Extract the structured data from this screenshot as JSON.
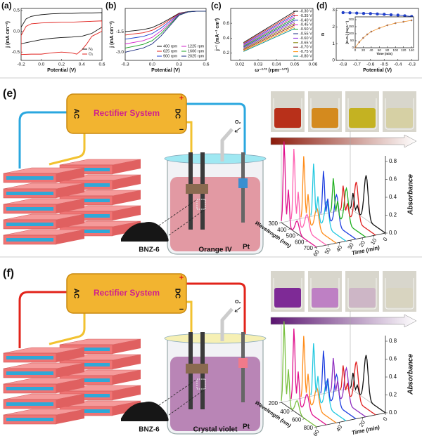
{
  "chart_data": [
    {
      "type": "line",
      "label": "(a)",
      "x_label": "Potential (V)",
      "y_label": "j (mA cm⁻²)",
      "xlim": [
        -0.2,
        0.6
      ],
      "ylim": [
        -0.7,
        0.55
      ],
      "xticks": [
        -0.2,
        {
          "value": 0,
          "label": "0.0"
        },
        0.2,
        0.4,
        0.6
      ],
      "yticks": [
        -0.5,
        {
          "value": 0,
          "label": "0.0"
        },
        0.5
      ],
      "series": [
        {
          "name": "N₂",
          "color": "#111111",
          "x": [
            -0.2,
            -0.15,
            -0.1,
            0,
            0.1,
            0.2,
            0.3,
            0.4,
            0.5,
            0.6,
            0.6,
            0.5,
            0.4,
            0.3,
            0.2,
            0.1,
            0,
            -0.1,
            -0.2,
            -0.2
          ],
          "values": [
            0.1,
            0.3,
            0.36,
            0.4,
            0.42,
            0.43,
            0.43,
            0.44,
            0.44,
            0.45,
            0.1,
            -0.05,
            -0.12,
            -0.14,
            -0.15,
            -0.17,
            -0.2,
            -0.25,
            -0.3,
            0.1
          ]
        },
        {
          "name": "O₂",
          "color": "#e0201c",
          "x": [
            -0.2,
            -0.15,
            -0.1,
            0,
            0.1,
            0.2,
            0.3,
            0.4,
            0.5,
            0.6,
            0.6,
            0.5,
            0.45,
            0.4,
            0.35,
            0.3,
            0.2,
            0.1,
            0,
            -0.1,
            -0.2,
            -0.2
          ],
          "values": [
            -0.1,
            0.12,
            0.18,
            0.2,
            0.21,
            0.22,
            0.22,
            0.23,
            0.24,
            0.25,
            0.0,
            -0.12,
            -0.3,
            -0.45,
            -0.55,
            -0.52,
            -0.5,
            -0.52,
            -0.55,
            -0.55,
            -0.56,
            -0.1
          ]
        }
      ]
    },
    {
      "type": "line",
      "label": "(b)",
      "x_label": "Potential (V)",
      "y_label": "j (mA cm⁻²)",
      "xlim": [
        -0.3,
        0.6
      ],
      "ylim": [
        -3.6,
        0.2
      ],
      "xticks": [
        -0.3,
        {
          "value": 0,
          "label": "0.0"
        },
        0.3,
        0.6
      ],
      "yticks": [
        {
          "value": -3,
          "label": "-3.0"
        },
        -1.5
      ],
      "series": [
        {
          "name": "400 rpm",
          "color": "#111111",
          "x": [
            -0.3,
            -0.2,
            -0.1,
            0,
            0.1,
            0.2,
            0.3,
            0.4,
            0.5,
            0.6
          ],
          "values": [
            -1.5,
            -1.43,
            -1.35,
            -1.2,
            -0.9,
            -0.53,
            -0.15,
            -0.03,
            0,
            0
          ]
        },
        {
          "name": "625 rpm",
          "color": "#e0201c",
          "x": [
            -0.3,
            -0.2,
            -0.1,
            0,
            0.1,
            0.2,
            0.3,
            0.4,
            0.5,
            0.6
          ],
          "values": [
            -1.75,
            -1.66,
            -1.58,
            -1.4,
            -1.05,
            -0.61,
            -0.18,
            -0.04,
            0,
            0
          ]
        },
        {
          "name": "900 rpm",
          "color": "#1f3fd0",
          "x": [
            -0.3,
            -0.2,
            -0.1,
            0,
            0.1,
            0.2,
            0.3,
            0.4,
            0.5,
            0.6
          ],
          "values": [
            -2.05,
            -1.95,
            -1.85,
            -1.64,
            -1.23,
            -0.72,
            -0.21,
            -0.04,
            0,
            0
          ]
        },
        {
          "name": "1225 rpm",
          "color": "#d020c8",
          "x": [
            -0.3,
            -0.2,
            -0.1,
            0,
            0.1,
            0.2,
            0.3,
            0.4,
            0.5,
            0.6
          ],
          "values": [
            -2.4,
            -2.28,
            -2.16,
            -1.92,
            -1.44,
            -0.84,
            -0.24,
            -0.05,
            0,
            0
          ]
        },
        {
          "name": "1600 rpm",
          "color": "#18a020",
          "x": [
            -0.3,
            -0.2,
            -0.1,
            0,
            0.1,
            0.2,
            0.3,
            0.4,
            0.5,
            0.6
          ],
          "values": [
            -2.7,
            -2.57,
            -2.43,
            -2.16,
            -1.62,
            -0.95,
            -0.27,
            -0.05,
            0,
            0
          ]
        },
        {
          "name": "2025 rpm",
          "color": "#1a2a80",
          "x": [
            -0.3,
            -0.2,
            -0.1,
            0,
            0.1,
            0.2,
            0.3,
            0.4,
            0.5,
            0.6
          ],
          "values": [
            -3,
            -2.85,
            -2.7,
            -2.4,
            -1.8,
            -1.05,
            -0.3,
            -0.06,
            0,
            0
          ]
        }
      ]
    },
    {
      "type": "line",
      "label": "(c)",
      "x_label": "ω⁻¹ᐟ² (rpm⁻¹ᐟ²)",
      "y_label": "j⁻¹ (mA⁻¹ cm²)",
      "xlim": [
        0.015,
        0.06
      ],
      "ylim": [
        0.1,
        0.8
      ],
      "xticks": [
        0.02,
        0.03,
        0.04,
        0.05,
        0.06
      ],
      "yticks": [
        0.2,
        0.4,
        0.6
      ],
      "series": [
        {
          "name": "-0.30 V",
          "color": "#111111",
          "x": [
            0.022,
            0.05
          ],
          "values": [
            0.34,
            0.76
          ]
        },
        {
          "name": "-0.35 V",
          "color": "#e0201c",
          "x": [
            0.022,
            0.05
          ],
          "values": [
            0.328,
            0.737
          ]
        },
        {
          "name": "-0.40 V",
          "color": "#1f3fd0",
          "x": [
            0.022,
            0.05
          ],
          "values": [
            0.316,
            0.714
          ]
        },
        {
          "name": "-0.45 V",
          "color": "#d020c8",
          "x": [
            0.022,
            0.05
          ],
          "values": [
            0.304,
            0.691
          ]
        },
        {
          "name": "-0.50 V",
          "color": "#18a020",
          "x": [
            0.022,
            0.05
          ],
          "values": [
            0.292,
            0.668
          ]
        },
        {
          "name": "-0.55 V",
          "color": "#1a2a80",
          "x": [
            0.022,
            0.05
          ],
          "values": [
            0.28,
            0.645
          ]
        },
        {
          "name": "-0.60 V",
          "color": "#8a2be2",
          "x": [
            0.022,
            0.05
          ],
          "values": [
            0.268,
            0.622
          ]
        },
        {
          "name": "-0.65 V",
          "color": "#808000",
          "x": [
            0.022,
            0.05
          ],
          "values": [
            0.256,
            0.599
          ]
        },
        {
          "name": "-0.70 V",
          "color": "#8b1a1a",
          "x": [
            0.022,
            0.05
          ],
          "values": [
            0.244,
            0.576
          ]
        },
        {
          "name": "-0.75 V",
          "color": "#ff8c00",
          "x": [
            0.022,
            0.05
          ],
          "values": [
            0.232,
            0.553
          ]
        },
        {
          "name": "-0.80 V",
          "color": "#008b8b",
          "x": [
            0.022,
            0.05
          ],
          "values": [
            0.22,
            0.53
          ]
        }
      ]
    },
    {
      "type": "line",
      "label": "(d)",
      "x_label": "Potential (V)",
      "y_label": "n",
      "markers": true,
      "xlim": [
        -0.85,
        -0.25
      ],
      "ylim": [
        0,
        3.1
      ],
      "xticks": [
        -0.8,
        -0.7,
        -0.6,
        -0.5,
        -0.4,
        -0.3
      ],
      "yticks": [
        0,
        1,
        2,
        3
      ],
      "series": [
        {
          "color": "#1f3fd0",
          "x": [
            -0.8,
            -0.75,
            -0.7,
            -0.65,
            -0.6,
            -0.55,
            -0.5,
            -0.45,
            -0.4,
            -0.35,
            -0.3
          ],
          "values": [
            2.85,
            2.84,
            2.82,
            2.8,
            2.79,
            2.77,
            2.75,
            2.72,
            2.7,
            2.66,
            2.62
          ]
        }
      ],
      "inset": {
        "type": "line",
        "x_label": "Time (min)",
        "y_label": "[H₂O₂] (mg L⁻¹)",
        "markers": true,
        "xlim": [
          0,
          145
        ],
        "ylim": [
          0,
          220
        ],
        "xticks": [
          0,
          20,
          40,
          60,
          80,
          100,
          120,
          140
        ],
        "yticks": [
          0,
          50,
          100,
          150,
          200
        ],
        "series": [
          {
            "color": "#f08a1c",
            "x": [
              0,
              10,
              20,
              30,
              40,
              60,
              80,
              100,
              120,
              140
            ],
            "values": [
              0,
              40,
              70,
              95,
              115,
              140,
              160,
              175,
              185,
              195
            ]
          }
        ]
      }
    }
  ],
  "panels": [
    {
      "label": "(e)",
      "rectifier": "Rectifier System",
      "ac": "AC",
      "dc": "DC",
      "plus": "+",
      "minus": "−",
      "gas": "O₂",
      "catalyst": "BNZ-6",
      "pollutant": "Orange IV",
      "electrode": "Pt",
      "spectra": {
        "z_label": "Absorbance",
        "zticks": [
          {
            "value": 0,
            "label": "0.0"
          },
          0.2,
          0.4,
          0.6,
          0.8
        ],
        "wavelength_label": "Wavelength (nm)",
        "wavelength_ticks": [
          300,
          400,
          500,
          600,
          700
        ],
        "time_label": "Time (min)",
        "time_ticks": [
          0,
          10,
          20,
          30,
          40,
          50,
          60
        ]
      }
    },
    {
      "label": "(f)",
      "rectifier": "Rectifier System",
      "ac": "AC",
      "dc": "DC",
      "plus": "+",
      "minus": "−",
      "gas": "O₂",
      "catalyst": "BNZ-6",
      "pollutant": "Crystal violet",
      "electrode": "Pt",
      "spectra": {
        "z_label": "Absorbance",
        "zticks": [
          {
            "value": 0,
            "label": "0.0"
          },
          0.2,
          0.4,
          0.6,
          0.8
        ],
        "wavelength_label": "Wavelength (nm)",
        "wavelength_ticks": [
          200,
          400,
          600,
          800
        ],
        "time_label": "Time (min)",
        "time_ticks": [
          0,
          20,
          40,
          60
        ]
      }
    }
  ]
}
